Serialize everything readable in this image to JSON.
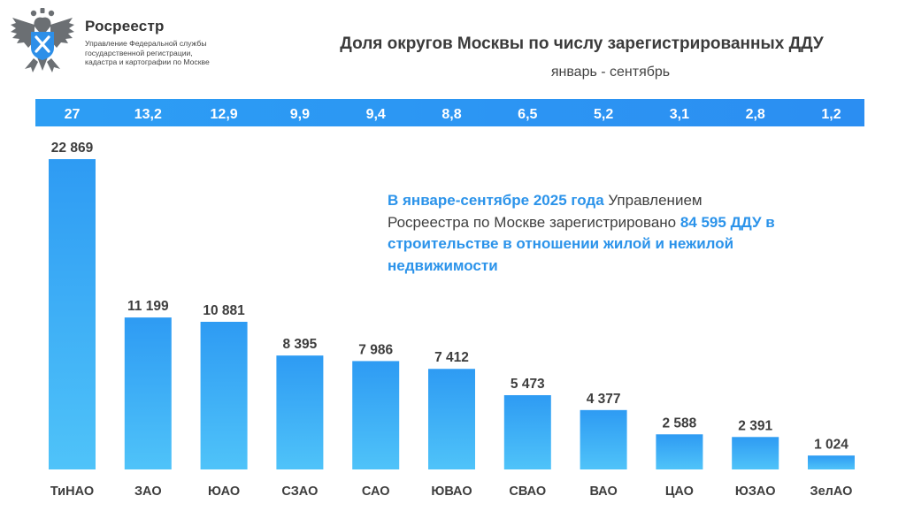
{
  "brand": {
    "name": "Росреестр",
    "subtitle_lines": [
      "Управление Федеральной службы",
      "государственной регистрации,",
      "кадастра и картографии по Москве"
    ],
    "logo": "double-headed-eagle-emblem"
  },
  "info": {
    "part1_highlight": "В январе-сентябре 2025 года",
    "part2": " Управлением Росреестра по Москве зарегистрировано ",
    "part3_highlight": "84 595 ДДУ в строительстве в отношении жилой и нежилой недвижимости"
  },
  "colors": {
    "accent": "#2b93ea",
    "bar_top": "#2e9bf3",
    "bar_bottom": "#4fc3f9",
    "band": "#2b97f3"
  },
  "chart_data": {
    "type": "bar",
    "title": "Доля округов Москвы по числу зарегистрированных ДДУ",
    "subtitle": "январь - сентябрь",
    "xlabel": "",
    "ylabel": "",
    "categories": [
      "ТиНАО",
      "ЗАО",
      "ЮАО",
      "СЗАО",
      "САО",
      "ЮВАО",
      "СВАО",
      "ВАО",
      "ЦАО",
      "ЮЗАО",
      "ЗелАО"
    ],
    "values": [
      22869,
      11199,
      10881,
      8395,
      7986,
      7412,
      5473,
      4377,
      2588,
      2391,
      1024
    ],
    "value_labels": [
      "22 869",
      "11 199",
      "10 881",
      "8 395",
      "7 986",
      "7 412",
      "5 473",
      "4 377",
      "2 588",
      "2 391",
      "1 024"
    ],
    "shares_percent_labels": [
      "27",
      "13,2",
      "12,9",
      "9,9",
      "9,4",
      "8,8",
      "6,5",
      "5,2",
      "3,1",
      "2,8",
      "1,2"
    ],
    "ylim": [
      0,
      22869
    ],
    "grid": false,
    "legend": "none"
  }
}
